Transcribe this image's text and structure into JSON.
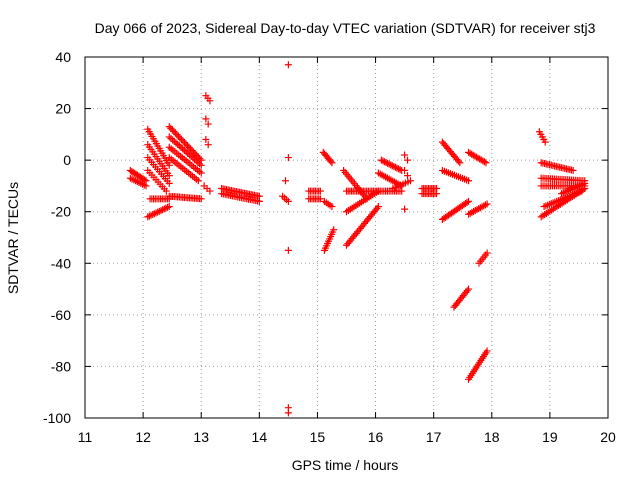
{
  "chart_data": {
    "type": "scatter",
    "title": "Day 066 of 2023, Sidereal Day-to-day VTEC variation (SDTVAR) for receiver stj3",
    "xlabel": "GPS time / hours",
    "ylabel": "SDTVAR / TECUs",
    "xlim": [
      11,
      20
    ],
    "ylim": [
      -100,
      40
    ],
    "xticks": [
      11,
      12,
      13,
      14,
      15,
      16,
      17,
      18,
      19,
      20
    ],
    "yticks": [
      -100,
      -80,
      -60,
      -40,
      -20,
      0,
      20,
      40
    ],
    "grid": true,
    "marker": "plus",
    "color": "#ff0000",
    "segments": [
      {
        "x0": 11.78,
        "x1": 12.05,
        "y0": -4,
        "y1": -8,
        "n": 12
      },
      {
        "x0": 11.78,
        "x1": 12.05,
        "y0": -7,
        "y1": -10,
        "n": 10
      },
      {
        "x0": 12.08,
        "x1": 12.45,
        "y0": 12,
        "y1": -2,
        "n": 16
      },
      {
        "x0": 12.08,
        "x1": 12.45,
        "y0": 6,
        "y1": -6,
        "n": 14
      },
      {
        "x0": 12.08,
        "x1": 12.45,
        "y0": 1,
        "y1": -9,
        "n": 12
      },
      {
        "x0": 12.08,
        "x1": 12.4,
        "y0": -4,
        "y1": -12,
        "n": 10
      },
      {
        "x0": 12.12,
        "x1": 12.45,
        "y0": -15,
        "y1": -15,
        "n": 12
      },
      {
        "x0": 12.45,
        "x1": 13.0,
        "y0": -14,
        "y1": -15,
        "n": 20
      },
      {
        "x0": 12.45,
        "x1": 13.0,
        "y0": 13,
        "y1": 0,
        "n": 22
      },
      {
        "x0": 12.45,
        "x1": 13.0,
        "y0": 9,
        "y1": -2,
        "n": 20
      },
      {
        "x0": 12.45,
        "x1": 13.0,
        "y0": 5,
        "y1": -5,
        "n": 18
      },
      {
        "x0": 12.45,
        "x1": 12.95,
        "y0": 1,
        "y1": -8,
        "n": 16
      },
      {
        "x0": 12.08,
        "x1": 12.45,
        "y0": -22,
        "y1": -18,
        "n": 14
      },
      {
        "x0": 13.08,
        "x1": 13.15,
        "y0": 25,
        "y1": 23,
        "n": 3
      },
      {
        "x0": 13.08,
        "x1": 13.12,
        "y0": 16,
        "y1": 14,
        "n": 2
      },
      {
        "x0": 13.08,
        "x1": 13.12,
        "y0": 8,
        "y1": 6,
        "n": 2
      },
      {
        "x0": 13.05,
        "x1": 13.15,
        "y0": -10,
        "y1": -12,
        "n": 3
      },
      {
        "x0": 13.35,
        "x1": 14.0,
        "y0": -11,
        "y1": -14,
        "n": 24
      },
      {
        "x0": 13.35,
        "x1": 14.0,
        "y0": -13,
        "y1": -16,
        "n": 22
      },
      {
        "x0": 14.4,
        "x1": 14.5,
        "y0": -14,
        "y1": -16,
        "n": 4
      },
      {
        "x0": 14.85,
        "x1": 15.05,
        "y0": -12,
        "y1": -12,
        "n": 8
      },
      {
        "x0": 14.85,
        "x1": 15.05,
        "y0": -15,
        "y1": -15,
        "n": 8
      },
      {
        "x0": 15.1,
        "x1": 15.25,
        "y0": 3,
        "y1": -1,
        "n": 8
      },
      {
        "x0": 15.12,
        "x1": 15.25,
        "y0": -16,
        "y1": -18,
        "n": 5
      },
      {
        "x0": 15.12,
        "x1": 15.28,
        "y0": -35,
        "y1": -27,
        "n": 10
      },
      {
        "x0": 15.45,
        "x1": 15.85,
        "y0": -4,
        "y1": -15,
        "n": 16
      },
      {
        "x0": 15.5,
        "x1": 16.05,
        "y0": -12,
        "y1": -12,
        "n": 20
      },
      {
        "x0": 15.5,
        "x1": 16.05,
        "y0": -20,
        "y1": -12,
        "n": 18
      },
      {
        "x0": 15.5,
        "x1": 16.05,
        "y0": -33,
        "y1": -18,
        "n": 24
      },
      {
        "x0": 16.1,
        "x1": 16.45,
        "y0": 0,
        "y1": -4,
        "n": 14
      },
      {
        "x0": 16.05,
        "x1": 16.45,
        "y0": -5,
        "y1": -10,
        "n": 14
      },
      {
        "x0": 16.05,
        "x1": 16.45,
        "y0": -12,
        "y1": -12,
        "n": 14
      },
      {
        "x0": 16.3,
        "x1": 16.6,
        "y0": -11,
        "y1": -8,
        "n": 8
      },
      {
        "x0": 16.5,
        "x1": 16.55,
        "y0": 2,
        "y1": 0,
        "n": 2
      },
      {
        "x0": 16.5,
        "x1": 16.55,
        "y0": -4,
        "y1": -6,
        "n": 2
      },
      {
        "x0": 16.5,
        "x1": 16.55,
        "y0": -19,
        "y1": -19,
        "n": 1
      },
      {
        "x0": 16.8,
        "x1": 17.05,
        "y0": -11,
        "y1": -11,
        "n": 10
      },
      {
        "x0": 16.8,
        "x1": 17.05,
        "y0": -13,
        "y1": -13,
        "n": 10
      },
      {
        "x0": 17.15,
        "x1": 17.45,
        "y0": 7,
        "y1": -1,
        "n": 14
      },
      {
        "x0": 17.15,
        "x1": 17.6,
        "y0": -4,
        "y1": -8,
        "n": 14
      },
      {
        "x0": 17.15,
        "x1": 17.6,
        "y0": -23,
        "y1": -16,
        "n": 18
      },
      {
        "x0": 17.35,
        "x1": 17.6,
        "y0": -57,
        "y1": -50,
        "n": 12
      },
      {
        "x0": 17.6,
        "x1": 17.9,
        "y0": 3,
        "y1": -1,
        "n": 12
      },
      {
        "x0": 17.6,
        "x1": 17.92,
        "y0": -21,
        "y1": -17,
        "n": 12
      },
      {
        "x0": 17.78,
        "x1": 17.92,
        "y0": -40,
        "y1": -36,
        "n": 6
      },
      {
        "x0": 17.6,
        "x1": 17.92,
        "y0": -85,
        "y1": -74,
        "n": 16
      },
      {
        "x0": 18.82,
        "x1": 18.92,
        "y0": 11,
        "y1": 7,
        "n": 5
      },
      {
        "x0": 18.85,
        "x1": 19.4,
        "y0": -1,
        "y1": -4,
        "n": 20
      },
      {
        "x0": 18.85,
        "x1": 19.6,
        "y0": -7,
        "y1": -8,
        "n": 24
      },
      {
        "x0": 18.85,
        "x1": 19.6,
        "y0": -10,
        "y1": -10,
        "n": 24
      },
      {
        "x0": 18.85,
        "x1": 19.6,
        "y0": -22,
        "y1": -11,
        "n": 26
      },
      {
        "x0": 18.9,
        "x1": 19.55,
        "y0": -18,
        "y1": -12,
        "n": 22
      },
      {
        "x0": 19.2,
        "x1": 19.6,
        "y0": -13,
        "y1": -9,
        "n": 14
      }
    ],
    "isolated_points": [
      {
        "x": 14.5,
        "y": 37
      },
      {
        "x": 14.5,
        "y": 1
      },
      {
        "x": 14.45,
        "y": -8
      },
      {
        "x": 14.5,
        "y": -35
      },
      {
        "x": 14.5,
        "y": -96
      },
      {
        "x": 14.5,
        "y": -98
      }
    ]
  }
}
